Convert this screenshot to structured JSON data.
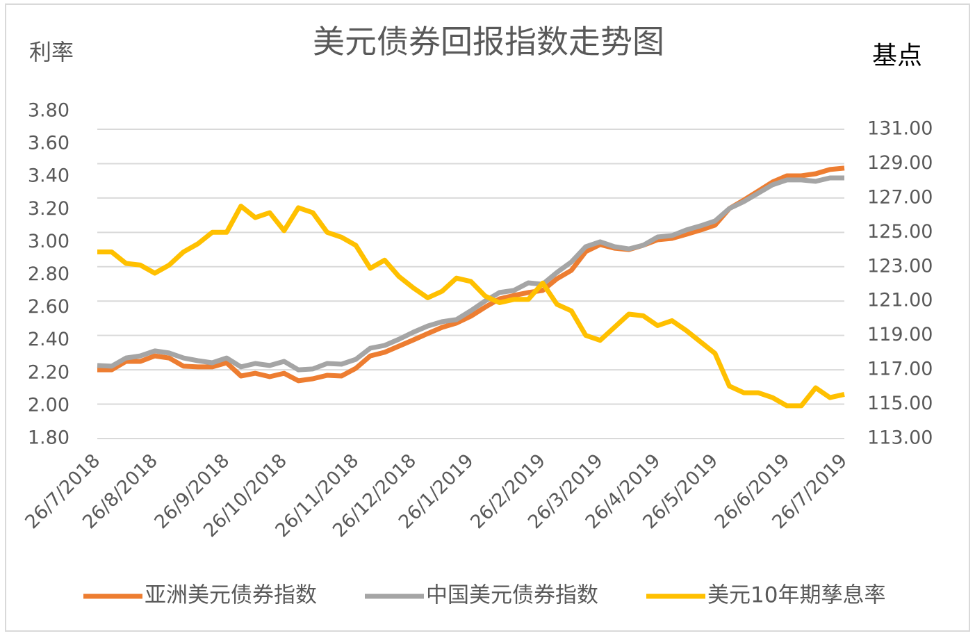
{
  "chart_data": {
    "type": "line",
    "title": "美元债券回报指数走势图",
    "ylabel": "利率",
    "y2label": "基点",
    "categories": [
      "26/7/2018",
      null,
      null,
      null,
      "26/8/2018",
      null,
      null,
      null,
      null,
      "26/9/2018",
      null,
      null,
      null,
      "26/10/2018",
      null,
      null,
      null,
      null,
      "26/11/2018",
      null,
      null,
      null,
      "26/12/2018",
      null,
      null,
      null,
      "26/1/2019",
      null,
      null,
      null,
      null,
      "26/2/2019",
      null,
      null,
      null,
      "26/3/2019",
      null,
      null,
      null,
      "26/4/2019",
      null,
      null,
      null,
      "26/5/2019",
      null,
      null,
      null,
      null,
      "26/6/2019",
      null,
      null,
      null,
      "26/7/2019"
    ],
    "series": [
      {
        "name": "亚洲美元债券指数",
        "color": "#ed7d31",
        "axis": "y2",
        "values": [
          117.0,
          117.0,
          117.49,
          117.49,
          117.81,
          117.69,
          117.21,
          117.17,
          117.17,
          117.41,
          116.64,
          116.8,
          116.6,
          116.8,
          116.36,
          116.48,
          116.68,
          116.64,
          117.09,
          117.81,
          118.02,
          118.38,
          118.74,
          119.11,
          119.47,
          119.72,
          120.12,
          120.65,
          121.13,
          121.33,
          121.5,
          121.62,
          122.3,
          122.79,
          123.88,
          124.29,
          124.08,
          124.0,
          124.25,
          124.57,
          124.65,
          124.89,
          125.14,
          125.42,
          126.39,
          126.88,
          127.4,
          127.93,
          128.29,
          128.29,
          128.41,
          128.66,
          128.74
        ]
      },
      {
        "name": "中国美元债券指数",
        "color": "#a5a5a5",
        "axis": "y2",
        "values": [
          117.25,
          117.21,
          117.69,
          117.81,
          118.1,
          117.98,
          117.69,
          117.53,
          117.41,
          117.69,
          117.17,
          117.37,
          117.25,
          117.49,
          117.0,
          117.05,
          117.37,
          117.33,
          117.61,
          118.26,
          118.42,
          118.78,
          119.19,
          119.55,
          119.8,
          119.92,
          120.44,
          121.01,
          121.5,
          121.62,
          122.06,
          121.98,
          122.67,
          123.28,
          124.17,
          124.45,
          124.17,
          124.04,
          124.25,
          124.73,
          124.81,
          125.14,
          125.38,
          125.66,
          126.39,
          126.79,
          127.28,
          127.77,
          128.05,
          128.05,
          127.97,
          128.17,
          128.17
        ]
      },
      {
        "name": "美元10年期孳息率",
        "color": "#ffc000",
        "axis": "y",
        "values": [
          2.94,
          2.94,
          2.87,
          2.86,
          2.81,
          2.86,
          2.94,
          2.99,
          3.06,
          3.06,
          3.22,
          3.15,
          3.18,
          3.07,
          3.21,
          3.18,
          3.06,
          3.03,
          2.98,
          2.84,
          2.89,
          2.79,
          2.72,
          2.66,
          2.7,
          2.78,
          2.76,
          2.67,
          2.63,
          2.65,
          2.65,
          2.75,
          2.62,
          2.58,
          2.43,
          2.4,
          2.48,
          2.56,
          2.55,
          2.49,
          2.52,
          2.46,
          2.39,
          2.32,
          2.12,
          2.08,
          2.08,
          2.05,
          2.0,
          2.0,
          2.11,
          2.05,
          2.07
        ]
      }
    ],
    "ylim": [
      1.8,
      3.8
    ],
    "yticks": [
      {
        "value": 1.8,
        "label": "1.80"
      },
      {
        "value": 2.0,
        "label": "2.00"
      },
      {
        "value": 2.2,
        "label": "2.20"
      },
      {
        "value": 2.4,
        "label": "2.40"
      },
      {
        "value": 2.6,
        "label": "2.60"
      },
      {
        "value": 2.8,
        "label": "2.80"
      },
      {
        "value": 3.0,
        "label": "3.00"
      },
      {
        "value": 3.2,
        "label": "3.20"
      },
      {
        "value": 3.4,
        "label": "3.40"
      },
      {
        "value": 3.6,
        "label": "3.60"
      },
      {
        "value": 3.8,
        "label": "3.80"
      }
    ],
    "y2lim": [
      113,
      131
    ],
    "y2ticks": [
      {
        "value": 113,
        "label": "113.00"
      },
      {
        "value": 115,
        "label": "115.00"
      },
      {
        "value": 117,
        "label": "117.00"
      },
      {
        "value": 119,
        "label": "119.00"
      },
      {
        "value": 121,
        "label": "121.00"
      },
      {
        "value": 123,
        "label": "123.00"
      },
      {
        "value": 125,
        "label": "125.00"
      },
      {
        "value": 127,
        "label": "127.00"
      },
      {
        "value": 129,
        "label": "129.00"
      },
      {
        "value": 131,
        "label": "131.00"
      }
    ],
    "grid": true,
    "legend": "bottom"
  }
}
